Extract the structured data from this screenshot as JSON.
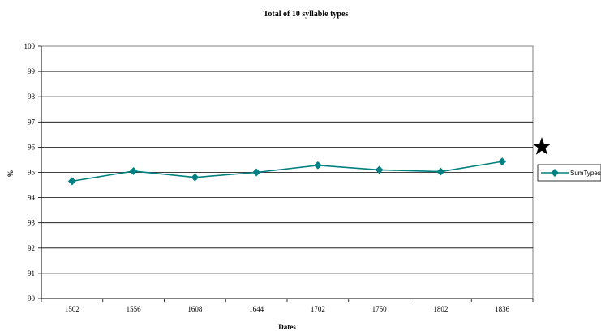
{
  "chart_data": {
    "type": "line",
    "title": "Total of 10 syllable types",
    "xlabel": "Dates",
    "ylabel": "%",
    "categories": [
      "1502",
      "1556",
      "1608",
      "1644",
      "1702",
      "1750",
      "1802",
      "1836"
    ],
    "series": [
      {
        "name": "SumTypes",
        "values": [
          94.65,
          95.05,
          94.8,
          95.0,
          95.28,
          95.1,
          95.03,
          95.43
        ],
        "color": "#008080"
      }
    ],
    "ylim": [
      90,
      100
    ],
    "yticks": [
      90,
      91,
      92,
      93,
      94,
      95,
      96,
      97,
      98,
      99,
      100
    ],
    "grid": "horizontal",
    "legend_position": "right",
    "annotation": {
      "icon": "star-icon",
      "color": "#000000"
    }
  }
}
